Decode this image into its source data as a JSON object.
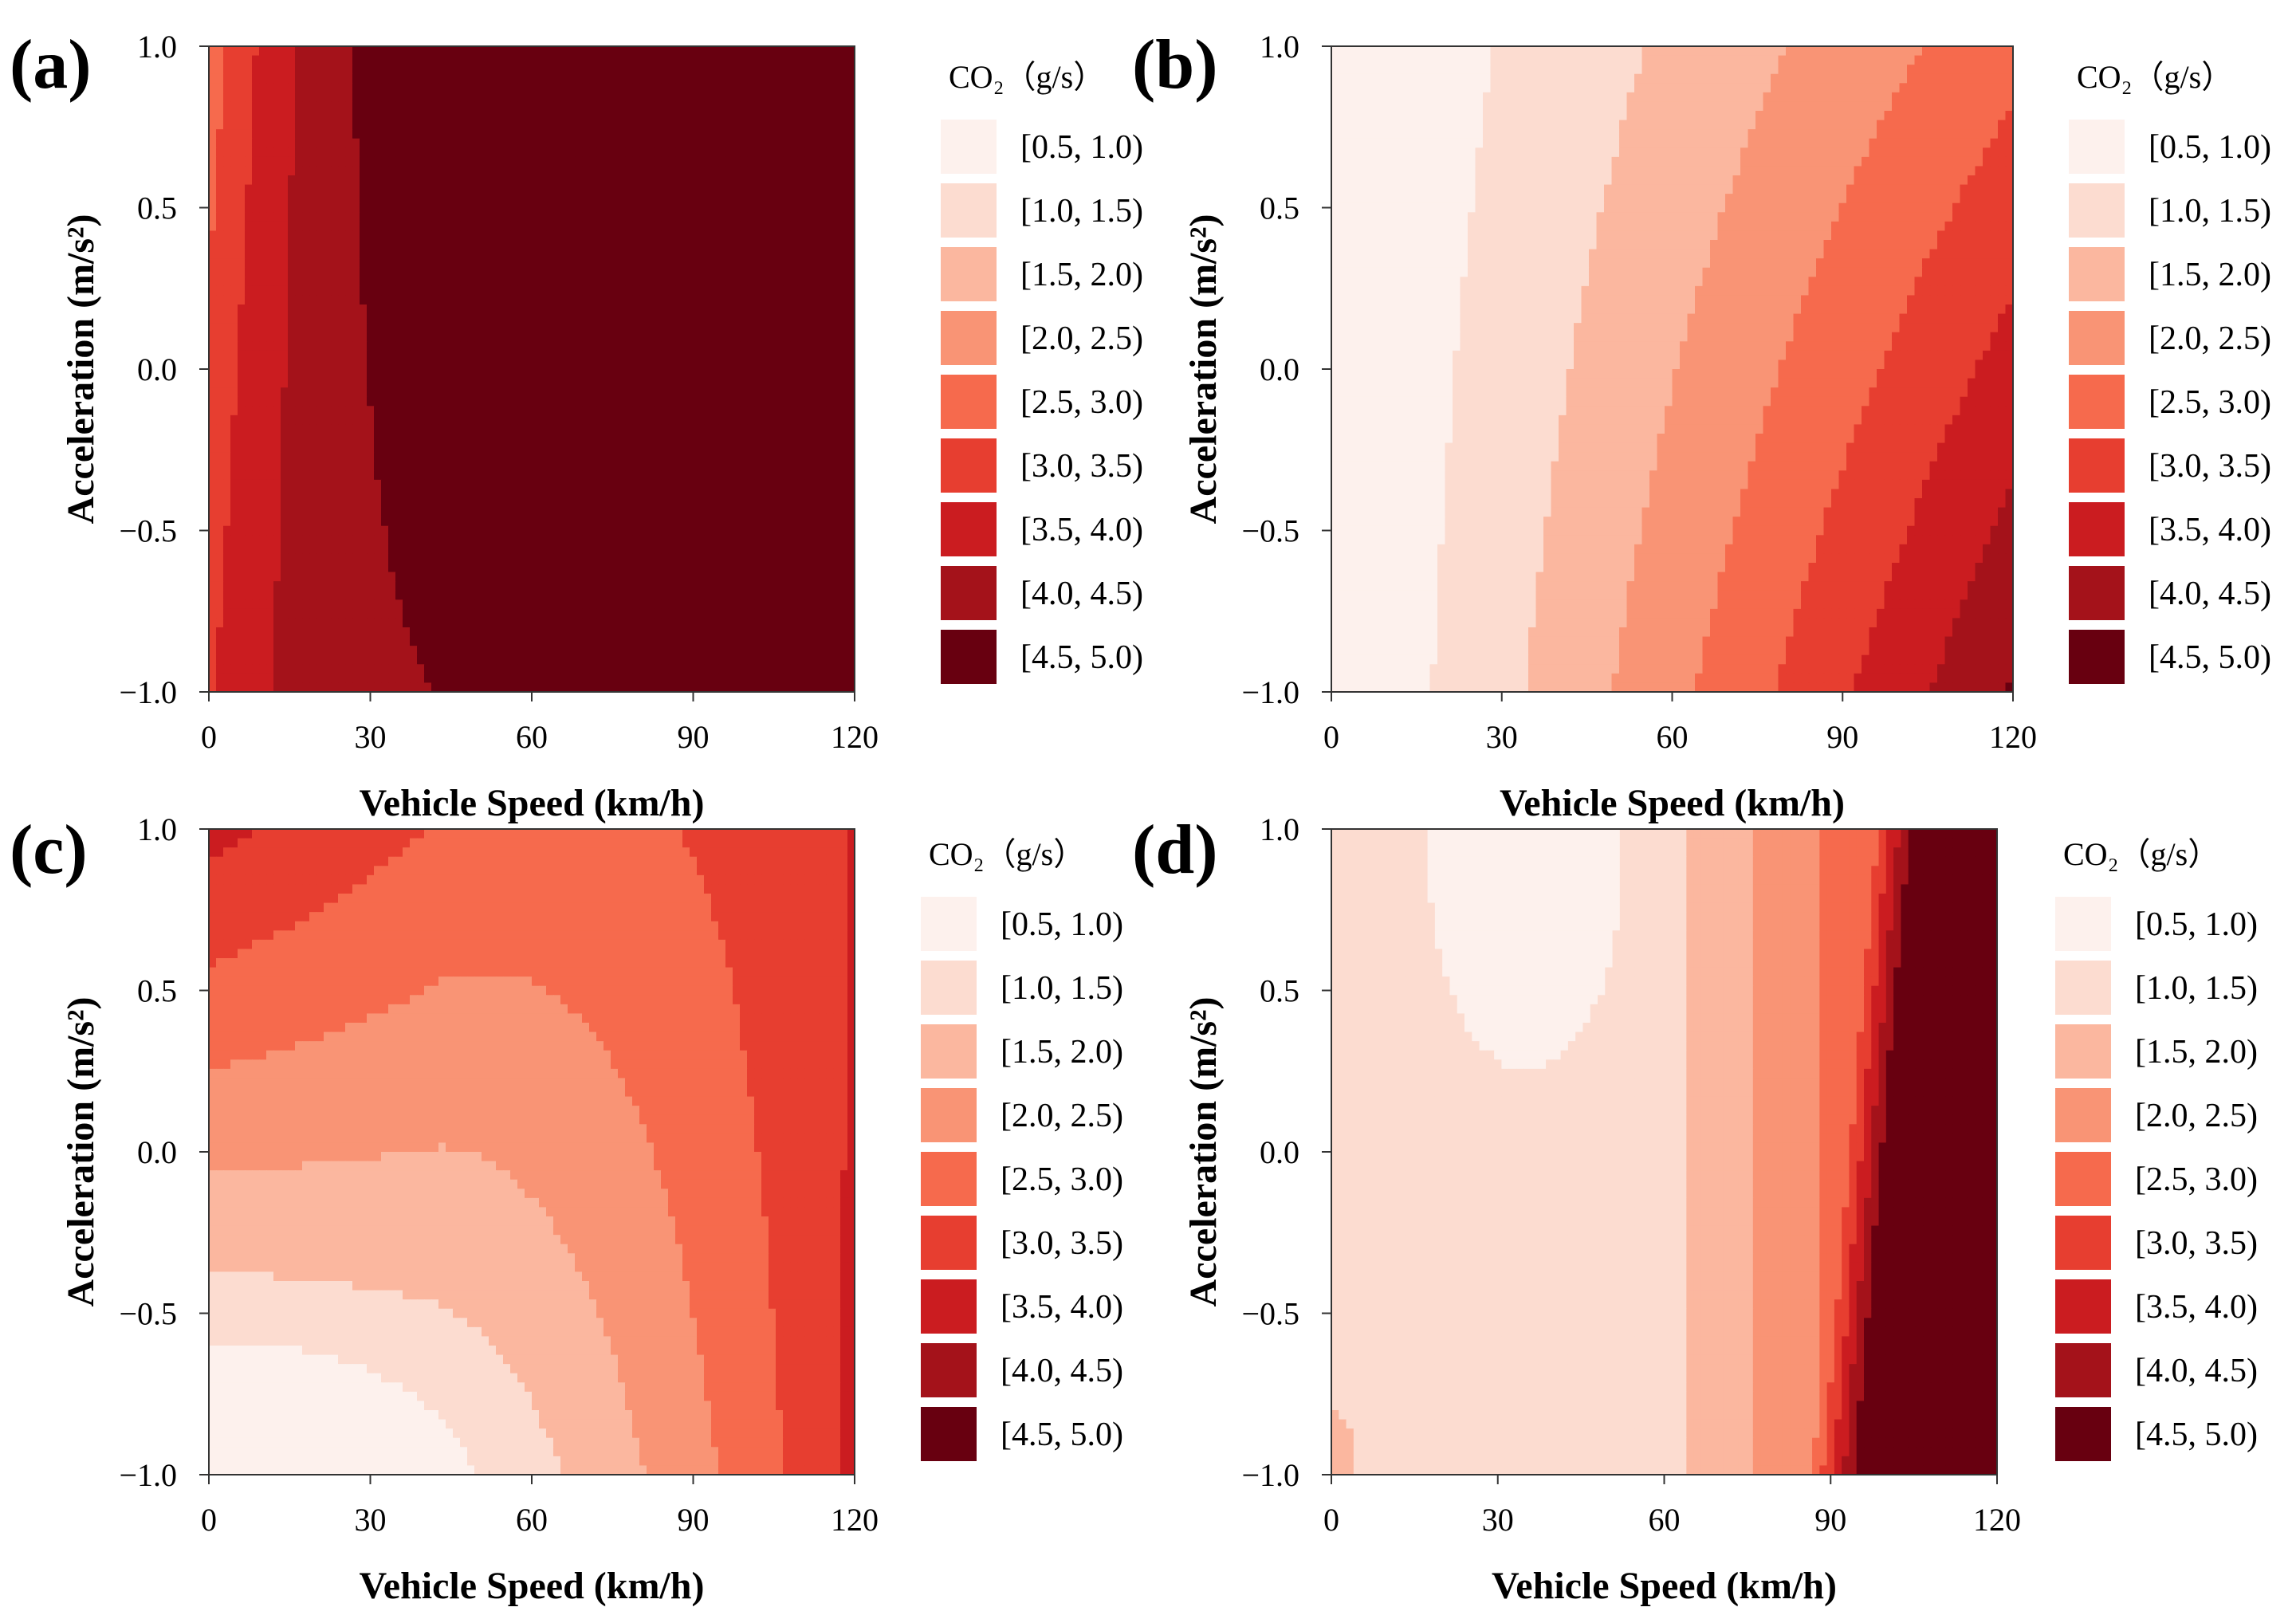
{
  "figure": {
    "legend_title": "CO₂（g/s）",
    "colors": [
      "#fdf1ed",
      "#fcdcd0",
      "#fbb79f",
      "#f99475",
      "#f66a4d",
      "#e73e30",
      "#cb1c20",
      "#a4121a",
      "#680010"
    ]
  },
  "chart_data": [
    {
      "type": "heatmap",
      "panel": "(a)",
      "xlabel": "Vehicle Speed (km/h)",
      "ylabel": "Acceleration (m/s²)",
      "xlim": [
        0,
        120
      ],
      "ylim": [
        -1.0,
        1.0
      ],
      "xticks": [
        "0",
        "30",
        "60",
        "90",
        "120"
      ],
      "yticks": [
        "1.0",
        "0.5",
        "0.0",
        "−0.5",
        "−1.0"
      ],
      "legend_title": "CO₂（g/s）",
      "legend": [
        "[0.5, 1.0)",
        "[1.0, 1.5)",
        "[1.5, 2.0)",
        "[2.0, 2.5)",
        "[2.5, 3.0)",
        "[3.0, 3.5)",
        "[3.5, 4.0)",
        "[4.0, 4.5)",
        "[4.5, 5.0)"
      ],
      "model": "a"
    },
    {
      "type": "heatmap",
      "panel": "(b)",
      "xlabel": "Vehicle Speed (km/h)",
      "ylabel": "Acceleration (m/s²)",
      "xlim": [
        0,
        120
      ],
      "ylim": [
        -1.0,
        1.0
      ],
      "xticks": [
        "0",
        "30",
        "60",
        "90",
        "120"
      ],
      "yticks": [
        "1.0",
        "0.5",
        "0.0",
        "−0.5",
        "−1.0"
      ],
      "legend_title": "CO₂（g/s）",
      "legend": [
        "[0.5, 1.0)",
        "[1.0, 1.5)",
        "[1.5, 2.0)",
        "[2.0, 2.5)",
        "[2.5, 3.0)",
        "[3.0, 3.5)",
        "[3.5, 4.0)",
        "[4.0, 4.5)",
        "[4.5, 5.0)"
      ],
      "model": "b"
    },
    {
      "type": "heatmap",
      "panel": "(c)",
      "xlabel": "Vehicle Speed (km/h)",
      "ylabel": "Acceleration (m/s²)",
      "xlim": [
        0,
        120
      ],
      "ylim": [
        -1.0,
        1.0
      ],
      "xticks": [
        "0",
        "30",
        "60",
        "90",
        "120"
      ],
      "yticks": [
        "1.0",
        "0.5",
        "0.0",
        "−0.5",
        "−1.0"
      ],
      "legend_title": "CO₂（g/s）",
      "legend": [
        "[0.5, 1.0)",
        "[1.0, 1.5)",
        "[1.5, 2.0)",
        "[2.0, 2.5)",
        "[2.5, 3.0)",
        "[3.0, 3.5)",
        "[3.5, 4.0)",
        "[4.0, 4.5)",
        "[4.5, 5.0)"
      ],
      "model": "c"
    },
    {
      "type": "heatmap",
      "panel": "(d)",
      "xlabel": "Vehicle Speed (km/h)",
      "ylabel": "Acceleration (m/s²)",
      "xlim": [
        0,
        120
      ],
      "ylim": [
        -1.0,
        1.0
      ],
      "xticks": [
        "0",
        "30",
        "60",
        "90",
        "120"
      ],
      "yticks": [
        "1.0",
        "0.5",
        "0.0",
        "−0.5",
        "−1.0"
      ],
      "legend_title": "CO₂（g/s）",
      "legend": [
        "[0.5, 1.0)",
        "[1.0, 1.5)",
        "[1.5, 2.0)",
        "[2.0, 2.5)",
        "[2.5, 3.0)",
        "[3.0, 3.5)",
        "[3.5, 4.0)",
        "[4.0, 4.5)",
        "[4.5, 5.0)"
      ],
      "model": "d"
    }
  ]
}
